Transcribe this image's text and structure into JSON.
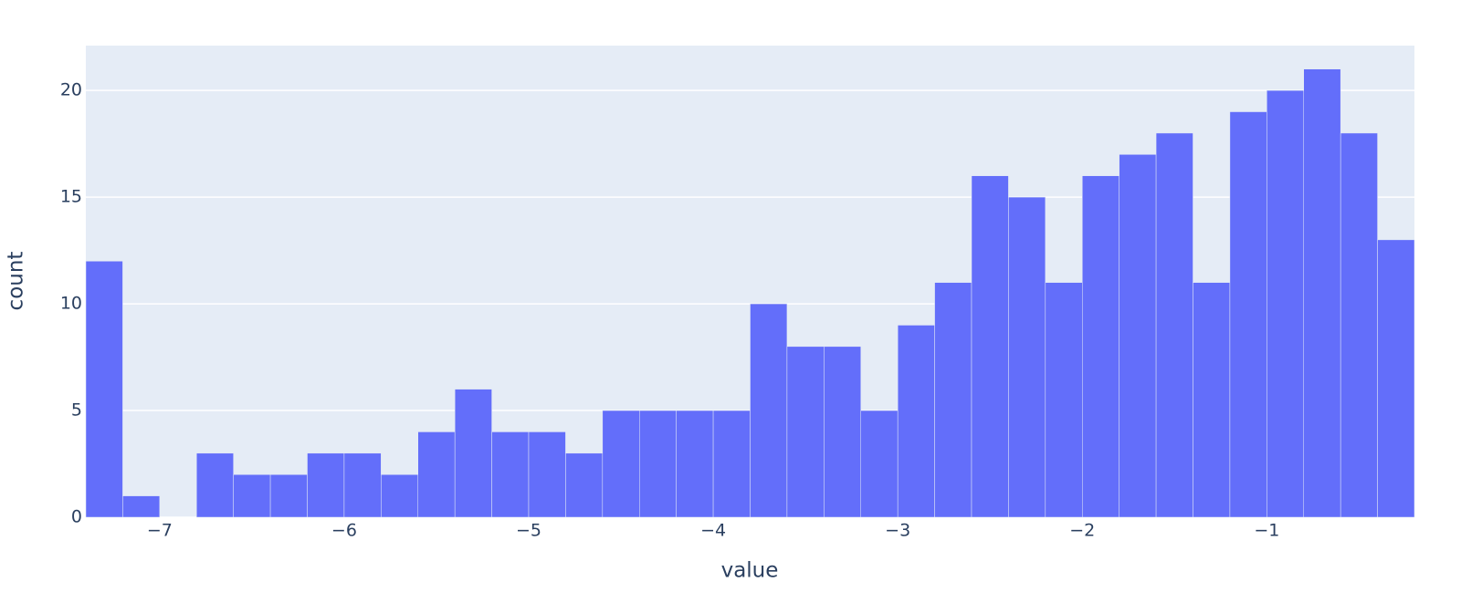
{
  "chart_data": {
    "type": "histogram",
    "x_label": "value",
    "y_label": "count",
    "color": "#636efa",
    "bins": [
      -7.4,
      -7.2,
      -7.0,
      -6.8,
      -6.6,
      -6.4,
      -6.2,
      -6.0,
      -5.8,
      -5.6,
      -5.4,
      -5.2,
      -5.0,
      -4.8,
      -4.6,
      -4.4,
      -4.2,
      -4.0,
      -3.8,
      -3.6,
      -3.4,
      -3.2,
      -3.0,
      -2.8,
      -2.6,
      -2.4,
      -2.2,
      -2.0,
      -1.8,
      -1.6,
      -1.4,
      -1.2,
      -1.0,
      -0.8,
      -0.6,
      -0.4,
      -0.2
    ],
    "values": [
      12,
      1,
      0,
      3,
      2,
      2,
      3,
      3,
      2,
      4,
      6,
      4,
      4,
      3,
      5,
      5,
      5,
      5,
      10,
      8,
      8,
      5,
      9,
      11,
      16,
      15,
      11,
      16,
      17,
      18,
      11,
      19,
      20,
      21,
      18,
      13
    ],
    "xlim": [
      -7.4,
      -0.2
    ],
    "ylim": [
      0,
      22.1
    ],
    "xticks": [
      {
        "value": -7,
        "label": "−7"
      },
      {
        "value": -6,
        "label": "−6"
      },
      {
        "value": -5,
        "label": "−5"
      },
      {
        "value": -4,
        "label": "−4"
      },
      {
        "value": -3,
        "label": "−3"
      },
      {
        "value": -2,
        "label": "−2"
      },
      {
        "value": -1,
        "label": "−1"
      }
    ],
    "yticks": [
      0,
      5,
      10,
      15,
      20
    ],
    "grid": true
  }
}
